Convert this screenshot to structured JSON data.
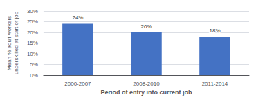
{
  "chart_data": {
    "type": "bar",
    "categories": [
      "2000-2007",
      "2008-2010",
      "2011-2014"
    ],
    "values": [
      24,
      20,
      18
    ],
    "value_labels": [
      "24%",
      "20%",
      "18%"
    ],
    "data_labels": true,
    "color": "#4472C4",
    "xlabel": "Period of entry into current job",
    "ylabel": "Mean % adult workers\nunderskilled at start of job",
    "ylim": [
      0,
      30
    ],
    "yticks": [
      {
        "value": 0,
        "label": "0%"
      },
      {
        "value": 5,
        "label": "5%"
      },
      {
        "value": 10,
        "label": "10%"
      },
      {
        "value": 15,
        "label": "15%"
      },
      {
        "value": 20,
        "label": "20%"
      },
      {
        "value": 25,
        "label": "25%"
      },
      {
        "value": 30,
        "label": "30%"
      }
    ],
    "grid": true
  }
}
